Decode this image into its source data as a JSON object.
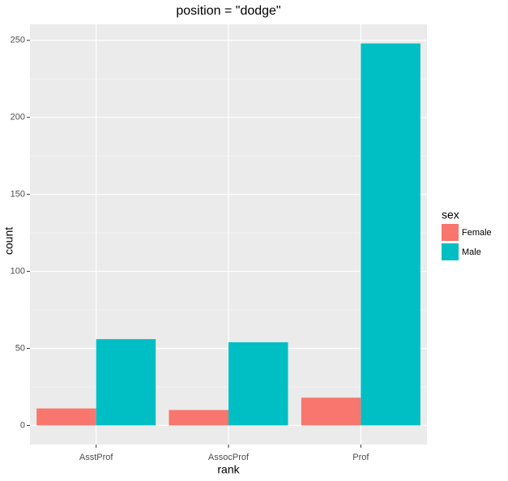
{
  "chart_data": {
    "type": "bar",
    "title": "position = \"dodge\"",
    "x_label": "rank",
    "y_label": "count",
    "legend_title": "sex",
    "categories": [
      "AsstProf",
      "AssocProf",
      "Prof"
    ],
    "series": [
      {
        "name": "Female",
        "color": "#f8766d",
        "values": [
          11,
          10,
          18
        ]
      },
      {
        "name": "Male",
        "color": "#00bfc4",
        "values": [
          56,
          54,
          248
        ]
      }
    ],
    "ylim": [
      -12.4,
      260.4
    ],
    "yticks": [
      0,
      50,
      100,
      150,
      200,
      250
    ],
    "yminor": [
      25,
      75,
      125,
      175,
      225
    ],
    "grid": true,
    "legend": "right"
  }
}
